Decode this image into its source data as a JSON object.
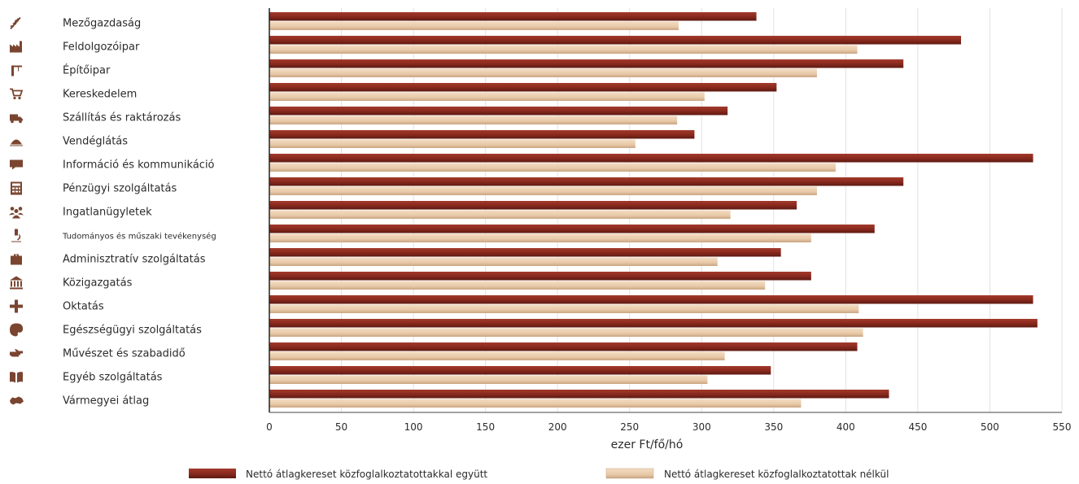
{
  "chart_data": {
    "type": "bar",
    "orientation": "horizontal",
    "categories": [
      "Mezőgazdaság",
      "Feldolgozóipar",
      "Építőipar",
      "Kereskedelem",
      "Szállítás és raktározás",
      "Vendéglátás",
      "Információ és kommunikáció",
      "Pénzügyi szolgáltatás",
      "Ingatlanügyletek",
      "Tudományos és műszaki tevékenység",
      "Adminisztratív szolgáltatás",
      "Közigazgatás",
      "Oktatás",
      "Egészségügyi szolgáltatás",
      "Művészet és szabadidő",
      "Egyéb szolgáltatás",
      "Vármegyei átlag"
    ],
    "category_icons": [
      "wheat-icon",
      "factory-icon",
      "crane-icon",
      "shopping-cart-icon",
      "truck-icon",
      "cloche-icon",
      "chat-bubble-icon",
      "calculator-icon",
      "people-icon",
      "microscope-icon",
      "briefcase-icon",
      "government-building-icon",
      "medical-cross-icon",
      "palette-icon",
      "pointing-hand-icon",
      "open-book-icon",
      "county-map-icon"
    ],
    "series": [
      {
        "name": "Nettó átlagkereset közfoglalkoztatottakkal együtt",
        "color": "#8b2a1e",
        "values": [
          338,
          480,
          440,
          352,
          318,
          295,
          530,
          440,
          366,
          420,
          355,
          376,
          530,
          533,
          408,
          348,
          430
        ]
      },
      {
        "name": "Nettó átlagkereset közfoglalkoztatottak nélkül",
        "color": "#e8c9a8",
        "values": [
          284,
          408,
          380,
          302,
          283,
          254,
          393,
          380,
          320,
          376,
          311,
          344,
          409,
          412,
          316,
          304,
          369
        ]
      }
    ],
    "xlabel": "ezer Ft/fő/hó",
    "xlim": [
      0,
      550
    ],
    "xticks": [
      0,
      50,
      100,
      150,
      200,
      250,
      300,
      350,
      400,
      450,
      500,
      550
    ],
    "grid": true,
    "legend_position": "bottom"
  }
}
